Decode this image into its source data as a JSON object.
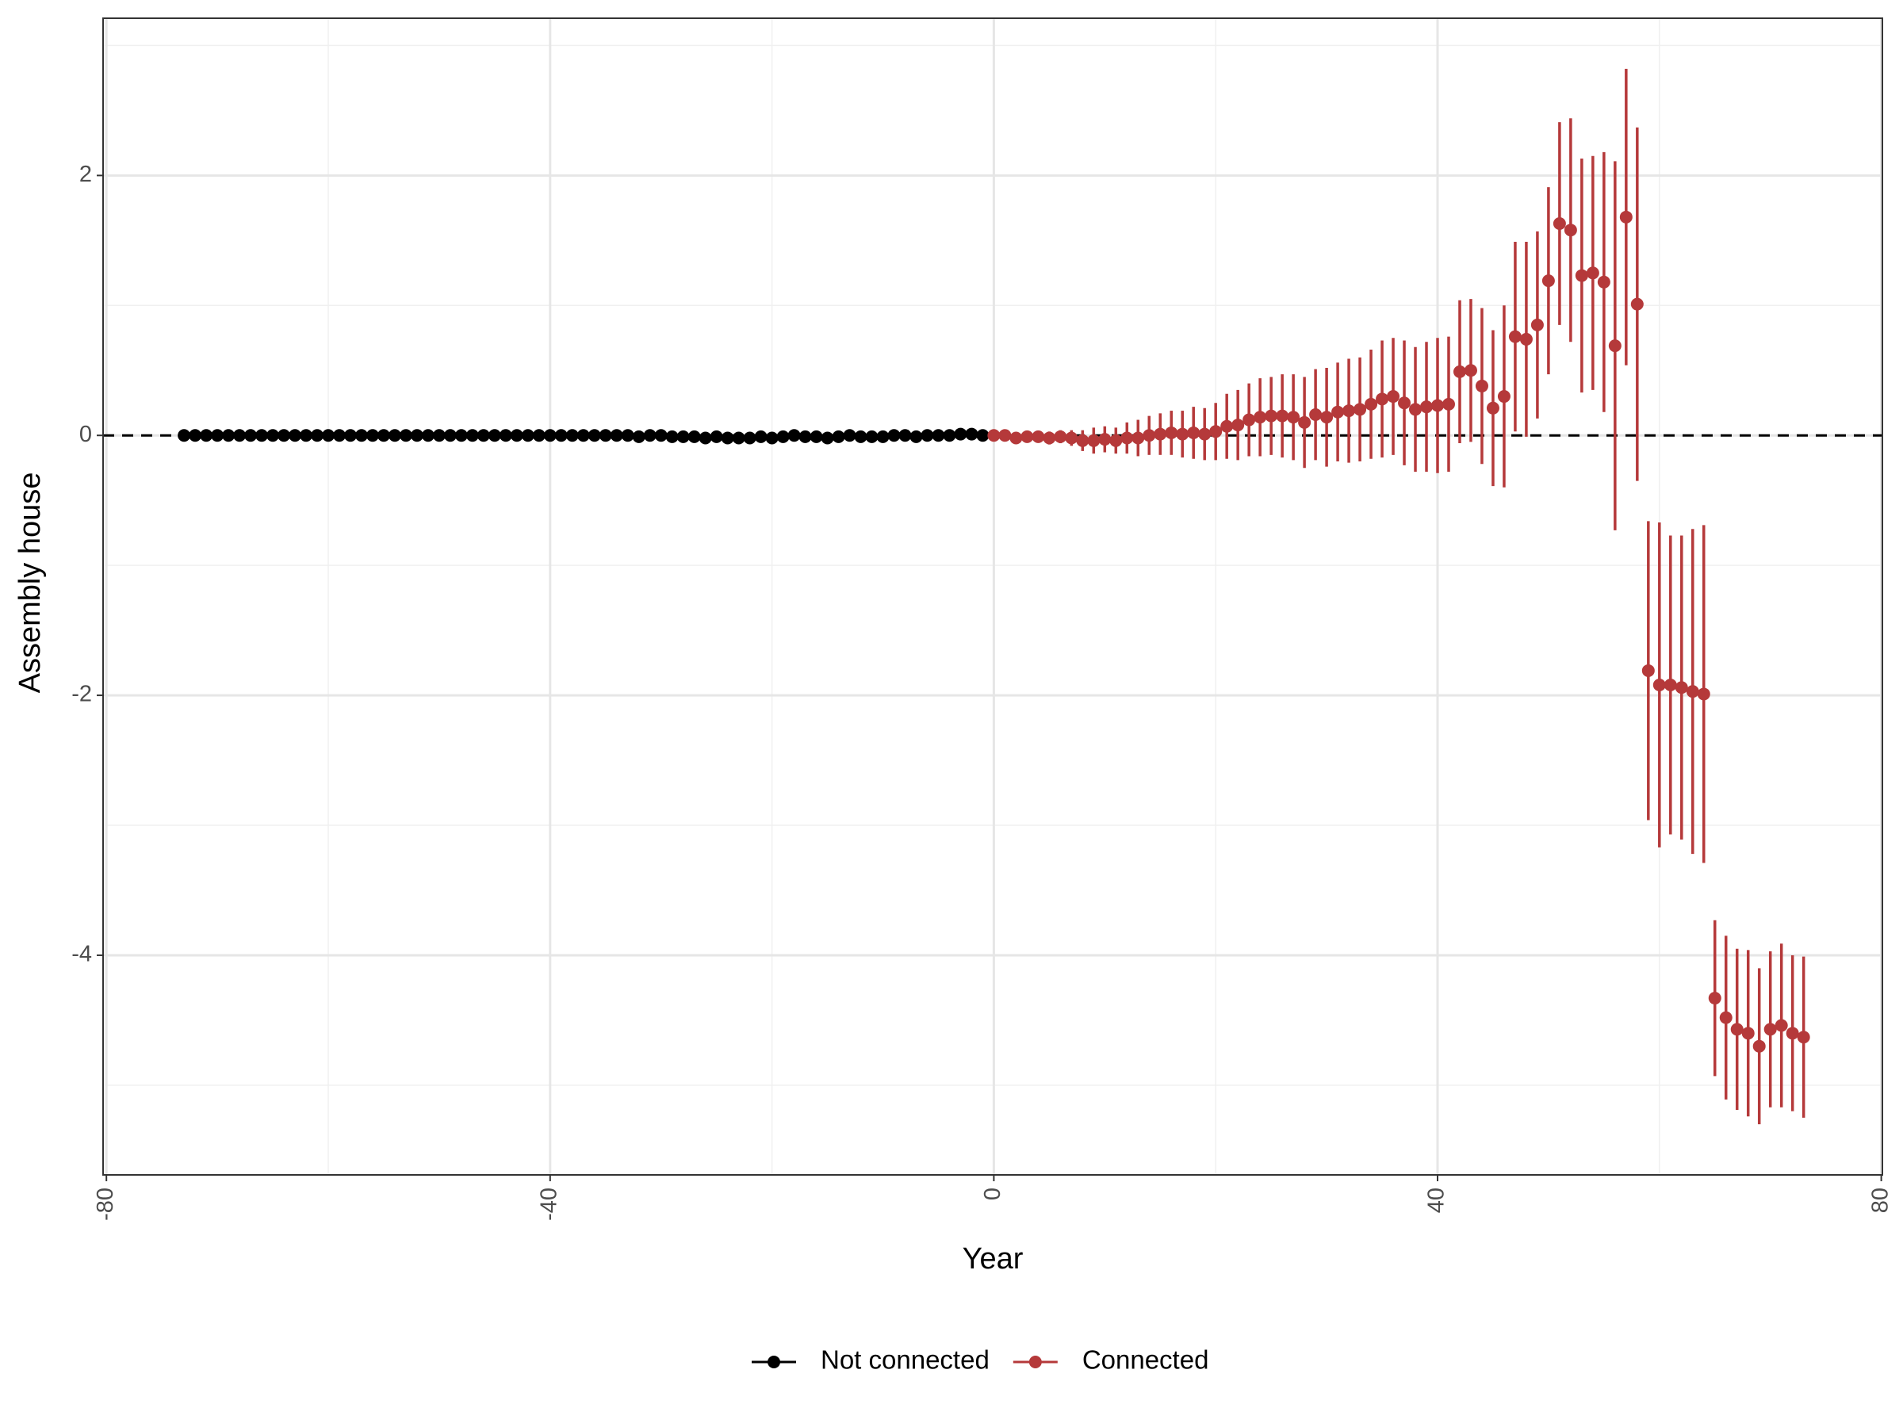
{
  "chart_data": {
    "type": "scatter",
    "x_label": "Year",
    "y_label": "Assembly house",
    "xlim": [
      -80.3,
      80.1
    ],
    "ylim": [
      -5.69,
      3.21
    ],
    "xticks": [
      -80,
      -40,
      0,
      40,
      80
    ],
    "yticks": [
      -4,
      -2,
      0,
      2
    ],
    "x_minor_grid": [
      -60,
      -20,
      20,
      60
    ],
    "y_minor_grid": [
      -5,
      -3,
      -1,
      1,
      3
    ],
    "grid": true,
    "reference_line": 0,
    "legend": "bottom",
    "series": [
      {
        "name": "Not connected",
        "color": "#000000",
        "x": [
          -73,
          -72,
          -71,
          -70,
          -69,
          -68,
          -67,
          -66,
          -65,
          -64,
          -63,
          -62,
          -61,
          -60,
          -59,
          -58,
          -57,
          -56,
          -55,
          -54,
          -53,
          -52,
          -51,
          -50,
          -49,
          -48,
          -47,
          -46,
          -45,
          -44,
          -43,
          -42,
          -41,
          -40,
          -39,
          -38,
          -37,
          -36,
          -35,
          -34,
          -33,
          -32,
          -31,
          -30,
          -29,
          -28,
          -27,
          -26,
          -25,
          -24,
          -23,
          -22,
          -21,
          -20,
          -19,
          -18,
          -17,
          -16,
          -15,
          -14,
          -13,
          -12,
          -11,
          -10,
          -9,
          -8,
          -7,
          -6,
          -5,
          -4,
          -3,
          -2,
          -1
        ],
        "values": [
          0,
          0,
          0,
          0,
          0,
          0,
          0,
          0,
          0,
          0,
          0,
          0,
          0,
          0,
          0,
          0,
          0,
          0,
          0,
          0,
          0,
          0,
          0,
          0,
          0,
          0,
          0,
          0,
          0,
          0,
          0,
          0,
          0,
          0,
          0,
          0,
          0,
          0,
          0,
          0,
          0,
          -0.01,
          0,
          0,
          -0.01,
          -0.01,
          -0.01,
          -0.02,
          -0.01,
          -0.02,
          -0.02,
          -0.02,
          -0.01,
          -0.02,
          -0.01,
          0,
          -0.01,
          -0.01,
          -0.02,
          -0.01,
          0,
          -0.01,
          -0.01,
          -0.01,
          0,
          0,
          -0.01,
          0,
          0,
          0,
          0.01,
          0.01,
          0
        ]
      },
      {
        "name": "Connected",
        "color": "#b5393a",
        "x": [
          0,
          1,
          2,
          3,
          4,
          5,
          6,
          7,
          8,
          9,
          10,
          11,
          12,
          13,
          14,
          15,
          16,
          17,
          18,
          19,
          20,
          21,
          22,
          23,
          24,
          25,
          26,
          27,
          28,
          29,
          30,
          31,
          32,
          33,
          34,
          35,
          36,
          37,
          38,
          39,
          40,
          41,
          42,
          43,
          44,
          45,
          46,
          47,
          48,
          49,
          50,
          51,
          52,
          53,
          54,
          55,
          56,
          57,
          58,
          59,
          60,
          61,
          62,
          63,
          64,
          65,
          66,
          67,
          68,
          69,
          70,
          71,
          72,
          73
        ],
        "values": [
          0,
          0,
          -0.02,
          -0.01,
          -0.01,
          -0.02,
          -0.01,
          -0.02,
          -0.04,
          -0.04,
          -0.03,
          -0.04,
          -0.02,
          -0.02,
          0,
          0.01,
          0.02,
          0.01,
          0.02,
          0.01,
          0.03,
          0.07,
          0.08,
          0.12,
          0.14,
          0.15,
          0.15,
          0.14,
          0.1,
          0.16,
          0.14,
          0.18,
          0.19,
          0.2,
          0.24,
          0.28,
          0.3,
          0.25,
          0.2,
          0.22,
          0.23,
          0.24,
          0.49,
          0.5,
          0.38,
          0.21,
          0.3,
          0.76,
          0.74,
          0.85,
          1.19,
          1.63,
          1.58,
          1.23,
          1.25,
          1.18,
          0.69,
          1.68,
          1.01,
          -1.81,
          -1.92,
          -1.92,
          -1.94,
          -1.97,
          -1.99,
          -4.33,
          -4.48,
          -4.57,
          -4.6,
          -4.7,
          -4.57,
          -4.54,
          -4.6,
          -4.63
        ],
        "errors": [
          0.02,
          0.02,
          0.03,
          0.03,
          0.04,
          0.05,
          0.05,
          0.06,
          0.08,
          0.1,
          0.1,
          0.1,
          0.12,
          0.14,
          0.15,
          0.16,
          0.17,
          0.18,
          0.2,
          0.2,
          0.22,
          0.25,
          0.27,
          0.28,
          0.3,
          0.3,
          0.32,
          0.33,
          0.35,
          0.35,
          0.38,
          0.38,
          0.4,
          0.4,
          0.42,
          0.45,
          0.45,
          0.48,
          0.48,
          0.5,
          0.52,
          0.52,
          0.55,
          0.55,
          0.6,
          0.6,
          0.7,
          0.73,
          0.75,
          0.72,
          0.72,
          0.78,
          0.86,
          0.9,
          0.9,
          1.0,
          1.42,
          1.14,
          1.36,
          1.15,
          1.25,
          1.15,
          1.17,
          1.25,
          1.3,
          0.6,
          0.63,
          0.62,
          0.64,
          0.6,
          0.6,
          0.63,
          0.6,
          0.62
        ]
      }
    ]
  }
}
